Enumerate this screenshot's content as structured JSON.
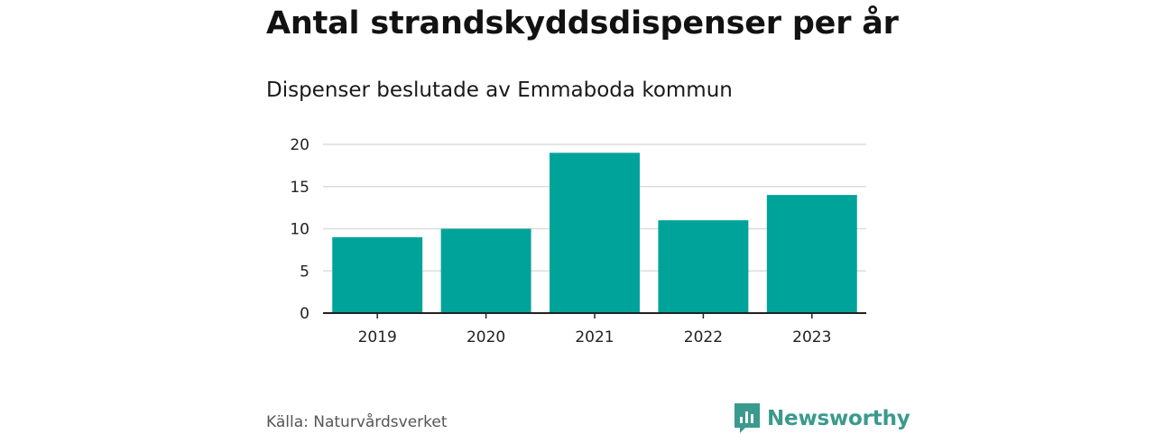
{
  "title": "Antal strandskyddsdispenser per år",
  "subtitle": "Dispenser beslutade av Emmaboda kommun",
  "source": "Källa: Naturvårdsverket",
  "brand": {
    "name": "Newsworthy",
    "icon": "newsworthy-logo-icon",
    "color": "#3a9a8d"
  },
  "chart_data": {
    "type": "bar",
    "title": "Antal strandskyddsdispenser per år",
    "subtitle": "Dispenser beslutade av Emmaboda kommun",
    "categories": [
      "2019",
      "2020",
      "2021",
      "2022",
      "2023"
    ],
    "values": [
      9,
      10,
      19,
      11,
      14
    ],
    "xlabel": "",
    "ylabel": "",
    "ylim": [
      0,
      20
    ],
    "yticks": [
      0,
      5,
      10,
      15,
      20
    ],
    "grid": true,
    "bar_color": "#00a39a"
  }
}
